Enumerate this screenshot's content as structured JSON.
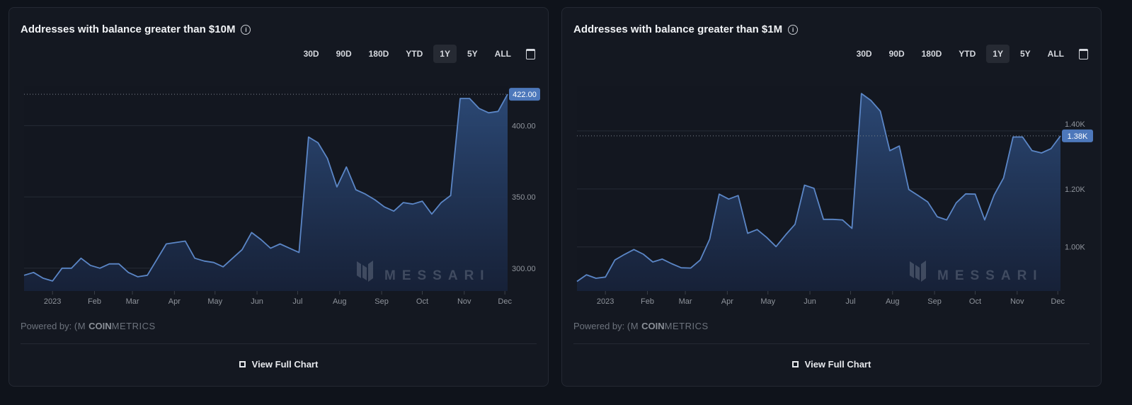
{
  "ranges": [
    "30D",
    "90D",
    "180D",
    "YTD",
    "1Y",
    "5Y",
    "ALL"
  ],
  "active_range": "1Y",
  "powered_by": "Powered by:",
  "coinmetrics_logo": "CM COINMETRICS",
  "watermark": "MESSARI",
  "view_full_chart": "View Full Chart",
  "colors": {
    "line": "#5b86c6",
    "badge": "#4d78bb",
    "background": "#141821"
  },
  "chart_data": [
    {
      "type": "area",
      "title": "Addresses with balance greater than $10M",
      "x": [
        "2022-12-11",
        "2022-12-18",
        "2022-12-25",
        "2023-01-01",
        "2023-01-08",
        "2023-01-15",
        "2023-01-22",
        "2023-01-29",
        "2023-02-05",
        "2023-02-12",
        "2023-02-19",
        "2023-02-26",
        "2023-03-05",
        "2023-03-12",
        "2023-03-19",
        "2023-03-26",
        "2023-04-02",
        "2023-04-09",
        "2023-04-16",
        "2023-04-23",
        "2023-04-30",
        "2023-05-07",
        "2023-05-14",
        "2023-05-21",
        "2023-05-28",
        "2023-06-04",
        "2023-06-11",
        "2023-06-18",
        "2023-06-25",
        "2023-07-02",
        "2023-07-09",
        "2023-07-16",
        "2023-07-23",
        "2023-07-30",
        "2023-08-06",
        "2023-08-13",
        "2023-08-20",
        "2023-08-27",
        "2023-09-03",
        "2023-09-10",
        "2023-09-17",
        "2023-09-24",
        "2023-10-01",
        "2023-10-08",
        "2023-10-15",
        "2023-10-22",
        "2023-10-29",
        "2023-11-05",
        "2023-11-12",
        "2023-11-19",
        "2023-11-26",
        "2023-12-03"
      ],
      "values": [
        295,
        297,
        293,
        291,
        300,
        300,
        307,
        302,
        300,
        303,
        303,
        297,
        294,
        295,
        306,
        317,
        318,
        319,
        307,
        305,
        304,
        301,
        307,
        313,
        325,
        320,
        314,
        317,
        314,
        311,
        392,
        388,
        377,
        357,
        371,
        355,
        352,
        348,
        343,
        340,
        346,
        345,
        347,
        338,
        346,
        351,
        419,
        419,
        412,
        409,
        410,
        422
      ],
      "current_value_label": "422.00",
      "y_ticks": [
        "300.00",
        "350.00",
        "400.00"
      ],
      "y_tick_values": [
        300,
        350,
        400
      ],
      "x_tick_labels": [
        "2023",
        "Feb",
        "Mar",
        "Apr",
        "May",
        "Jun",
        "Jul",
        "Aug",
        "Sep",
        "Oct",
        "Nov",
        "Dec"
      ],
      "x_tick_dates": [
        "2023-01-01",
        "2023-02-01",
        "2023-03-01",
        "2023-04-01",
        "2023-05-01",
        "2023-06-01",
        "2023-07-01",
        "2023-08-01",
        "2023-09-01",
        "2023-10-01",
        "2023-11-01",
        "2023-12-01"
      ],
      "ylim": [
        284,
        428
      ],
      "grid": true
    },
    {
      "type": "area",
      "title": "Addresses with balance greater than $1M",
      "x": [
        "2022-12-11",
        "2022-12-18",
        "2022-12-25",
        "2023-01-01",
        "2023-01-08",
        "2023-01-15",
        "2023-01-22",
        "2023-01-29",
        "2023-02-05",
        "2023-02-12",
        "2023-02-19",
        "2023-02-26",
        "2023-03-05",
        "2023-03-12",
        "2023-03-19",
        "2023-03-26",
        "2023-04-02",
        "2023-04-09",
        "2023-04-16",
        "2023-04-23",
        "2023-04-30",
        "2023-05-07",
        "2023-05-14",
        "2023-05-21",
        "2023-05-28",
        "2023-06-04",
        "2023-06-11",
        "2023-06-18",
        "2023-06-25",
        "2023-07-02",
        "2023-07-09",
        "2023-07-16",
        "2023-07-23",
        "2023-07-30",
        "2023-08-06",
        "2023-08-13",
        "2023-08-20",
        "2023-08-27",
        "2023-09-03",
        "2023-09-10",
        "2023-09-17",
        "2023-09-24",
        "2023-10-01",
        "2023-10-08",
        "2023-10-15",
        "2023-10-22",
        "2023-10-29",
        "2023-11-05",
        "2023-11-12",
        "2023-11-19",
        "2023-11-26",
        "2023-12-03"
      ],
      "values": [
        881,
        904,
        892,
        896,
        955,
        974,
        991,
        975,
        948,
        958,
        942,
        928,
        927,
        955,
        1027,
        1182,
        1165,
        1177,
        1047,
        1060,
        1033,
        1001,
        1041,
        1078,
        1213,
        1202,
        1095,
        1095,
        1093,
        1064,
        1529,
        1505,
        1468,
        1332,
        1348,
        1198,
        1177,
        1155,
        1104,
        1093,
        1152,
        1183,
        1182,
        1093,
        1179,
        1238,
        1379,
        1379,
        1332,
        1324,
        1339,
        1383
      ],
      "current_value_label": "1.38K",
      "y_ticks": [
        "1.00K",
        "1.20K",
        "1.40K"
      ],
      "y_tick_values": [
        1000,
        1200,
        1400
      ],
      "x_tick_labels": [
        "2023",
        "Feb",
        "Mar",
        "Apr",
        "May",
        "Jun",
        "Jul",
        "Aug",
        "Sep",
        "Oct",
        "Nov",
        "Dec"
      ],
      "x_tick_dates": [
        "2023-01-01",
        "2023-02-01",
        "2023-03-01",
        "2023-04-01",
        "2023-05-01",
        "2023-06-01",
        "2023-07-01",
        "2023-08-01",
        "2023-09-01",
        "2023-10-01",
        "2023-11-01",
        "2023-12-01"
      ],
      "ylim": [
        848,
        1556
      ],
      "grid": true
    }
  ]
}
